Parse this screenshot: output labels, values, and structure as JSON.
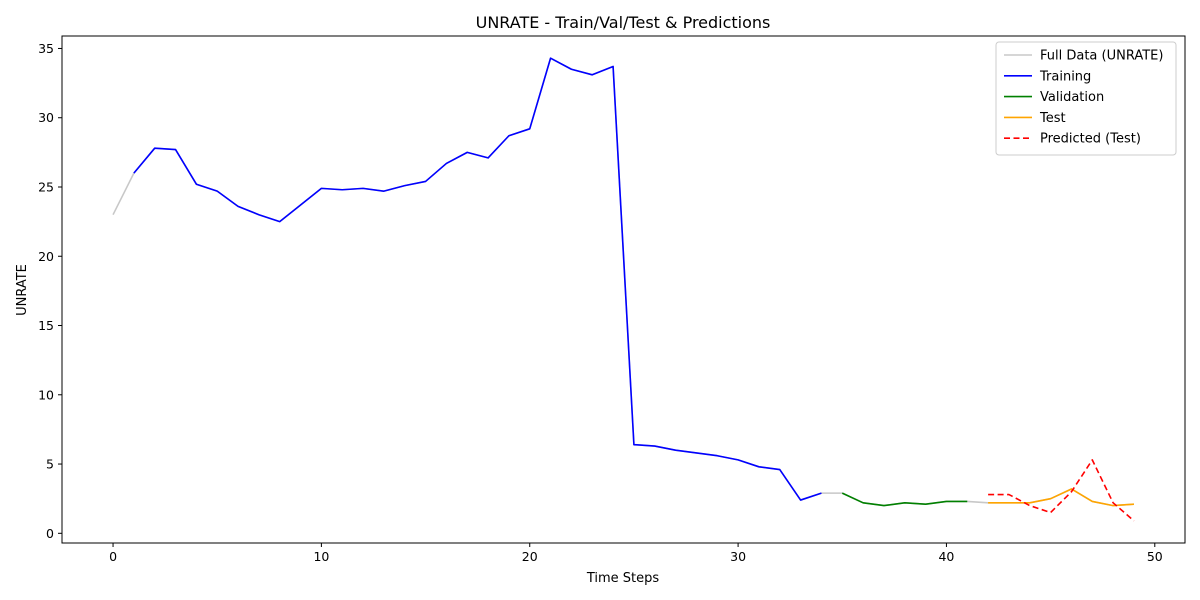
{
  "chart_data": {
    "type": "line",
    "title": "UNRATE - Train/Val/Test & Predictions",
    "xlabel": "Time Steps",
    "ylabel": "UNRATE",
    "xlim": [
      -2.45,
      51.45
    ],
    "ylim": [
      -0.7,
      35.9
    ],
    "xticks": [
      0,
      10,
      20,
      30,
      40,
      50
    ],
    "yticks": [
      0,
      5,
      10,
      15,
      20,
      25,
      30,
      35
    ],
    "grid": false,
    "legend_position": "top-right",
    "series": [
      {
        "name": "Full Data (UNRATE)",
        "color": "#c8c8c8",
        "style": "solid",
        "x": [
          0,
          1,
          2,
          3,
          4,
          5,
          6,
          7,
          8,
          9,
          10,
          11,
          12,
          13,
          14,
          15,
          16,
          17,
          18,
          19,
          20,
          21,
          22,
          23,
          24,
          25,
          26,
          27,
          28,
          29,
          30,
          31,
          32,
          33,
          34,
          35,
          36,
          37,
          38,
          39,
          40,
          41,
          42,
          43,
          44,
          45,
          46,
          47,
          48,
          49
        ],
        "y": [
          23.0,
          26.0,
          27.8,
          27.7,
          25.2,
          24.7,
          23.6,
          23.0,
          22.5,
          23.7,
          24.9,
          24.8,
          24.9,
          24.7,
          25.1,
          25.4,
          26.7,
          27.5,
          27.1,
          28.7,
          29.2,
          34.3,
          33.5,
          33.1,
          33.7,
          6.4,
          6.3,
          6.0,
          5.8,
          5.6,
          5.3,
          4.8,
          4.6,
          2.4,
          2.9,
          2.9,
          2.2,
          2.0,
          2.2,
          2.1,
          2.3,
          2.3,
          2.2,
          2.2,
          2.2,
          2.5,
          3.2,
          2.3,
          2.0,
          2.1
        ]
      },
      {
        "name": "Training",
        "color": "#0000ff",
        "style": "solid",
        "x": [
          1,
          2,
          3,
          4,
          5,
          6,
          7,
          8,
          9,
          10,
          11,
          12,
          13,
          14,
          15,
          16,
          17,
          18,
          19,
          20,
          21,
          22,
          23,
          24,
          25,
          26,
          27,
          28,
          29,
          30,
          31,
          32,
          33,
          34
        ],
        "y": [
          26.0,
          27.8,
          27.7,
          25.2,
          24.7,
          23.6,
          23.0,
          22.5,
          23.7,
          24.9,
          24.8,
          24.9,
          24.7,
          25.1,
          25.4,
          26.7,
          27.5,
          27.1,
          28.7,
          29.2,
          34.3,
          33.5,
          33.1,
          33.7,
          6.4,
          6.3,
          6.0,
          5.8,
          5.6,
          5.3,
          4.8,
          4.6,
          2.4,
          2.9
        ]
      },
      {
        "name": "Validation",
        "color": "#008000",
        "style": "solid",
        "x": [
          35,
          36,
          37,
          38,
          39,
          40,
          41
        ],
        "y": [
          2.9,
          2.2,
          2.0,
          2.2,
          2.1,
          2.3,
          2.3
        ]
      },
      {
        "name": "Test",
        "color": "#ffa500",
        "style": "solid",
        "x": [
          42,
          43,
          44,
          45,
          46,
          47,
          48,
          49
        ],
        "y": [
          2.2,
          2.2,
          2.2,
          2.5,
          3.2,
          2.3,
          2.0,
          2.1
        ]
      },
      {
        "name": "Predicted (Test)",
        "color": "#ff0000",
        "style": "dashed",
        "x": [
          42,
          43,
          44,
          45,
          46,
          47,
          48,
          49
        ],
        "y": [
          2.8,
          2.8,
          2.0,
          1.5,
          3.0,
          5.3,
          2.2,
          0.9
        ]
      }
    ]
  }
}
